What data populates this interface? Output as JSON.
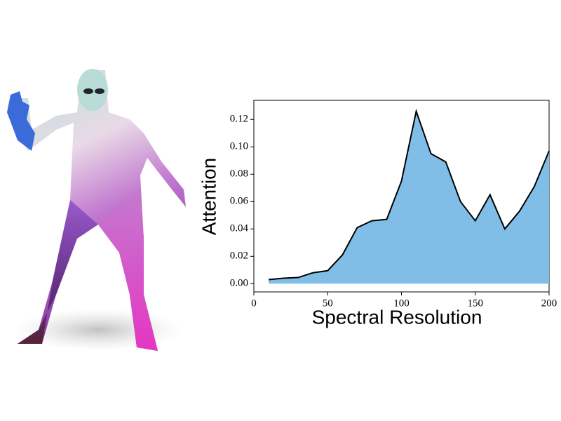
{
  "chart_data": {
    "type": "area",
    "x": [
      10,
      20,
      30,
      40,
      50,
      60,
      70,
      80,
      90,
      100,
      110,
      120,
      130,
      140,
      150,
      160,
      170,
      180,
      190,
      200
    ],
    "values": [
      0.003,
      0.004,
      0.0045,
      0.008,
      0.0095,
      0.021,
      0.041,
      0.046,
      0.047,
      0.075,
      0.126,
      0.095,
      0.089,
      0.06,
      0.046,
      0.065,
      0.04,
      0.053,
      0.071,
      0.097
    ],
    "color": "#80bee8",
    "line_color": "#000000",
    "xlabel": "Spectral Resolution",
    "ylabel": "Attention",
    "xlim": [
      0,
      200
    ],
    "xticks": [
      0,
      50,
      100,
      150,
      200
    ],
    "ylim": [
      -0.006,
      0.134
    ],
    "yticks": [
      {
        "value": 0,
        "label": "0.00"
      },
      {
        "value": 0.02,
        "label": "0.02"
      },
      {
        "value": 0.04,
        "label": "0.04"
      },
      {
        "value": 0.06,
        "label": "0.06"
      },
      {
        "value": 0.08,
        "label": "0.08"
      },
      {
        "value": 0.1,
        "label": "0.10"
      },
      {
        "value": 0.12,
        "label": "0.12"
      }
    ]
  }
}
